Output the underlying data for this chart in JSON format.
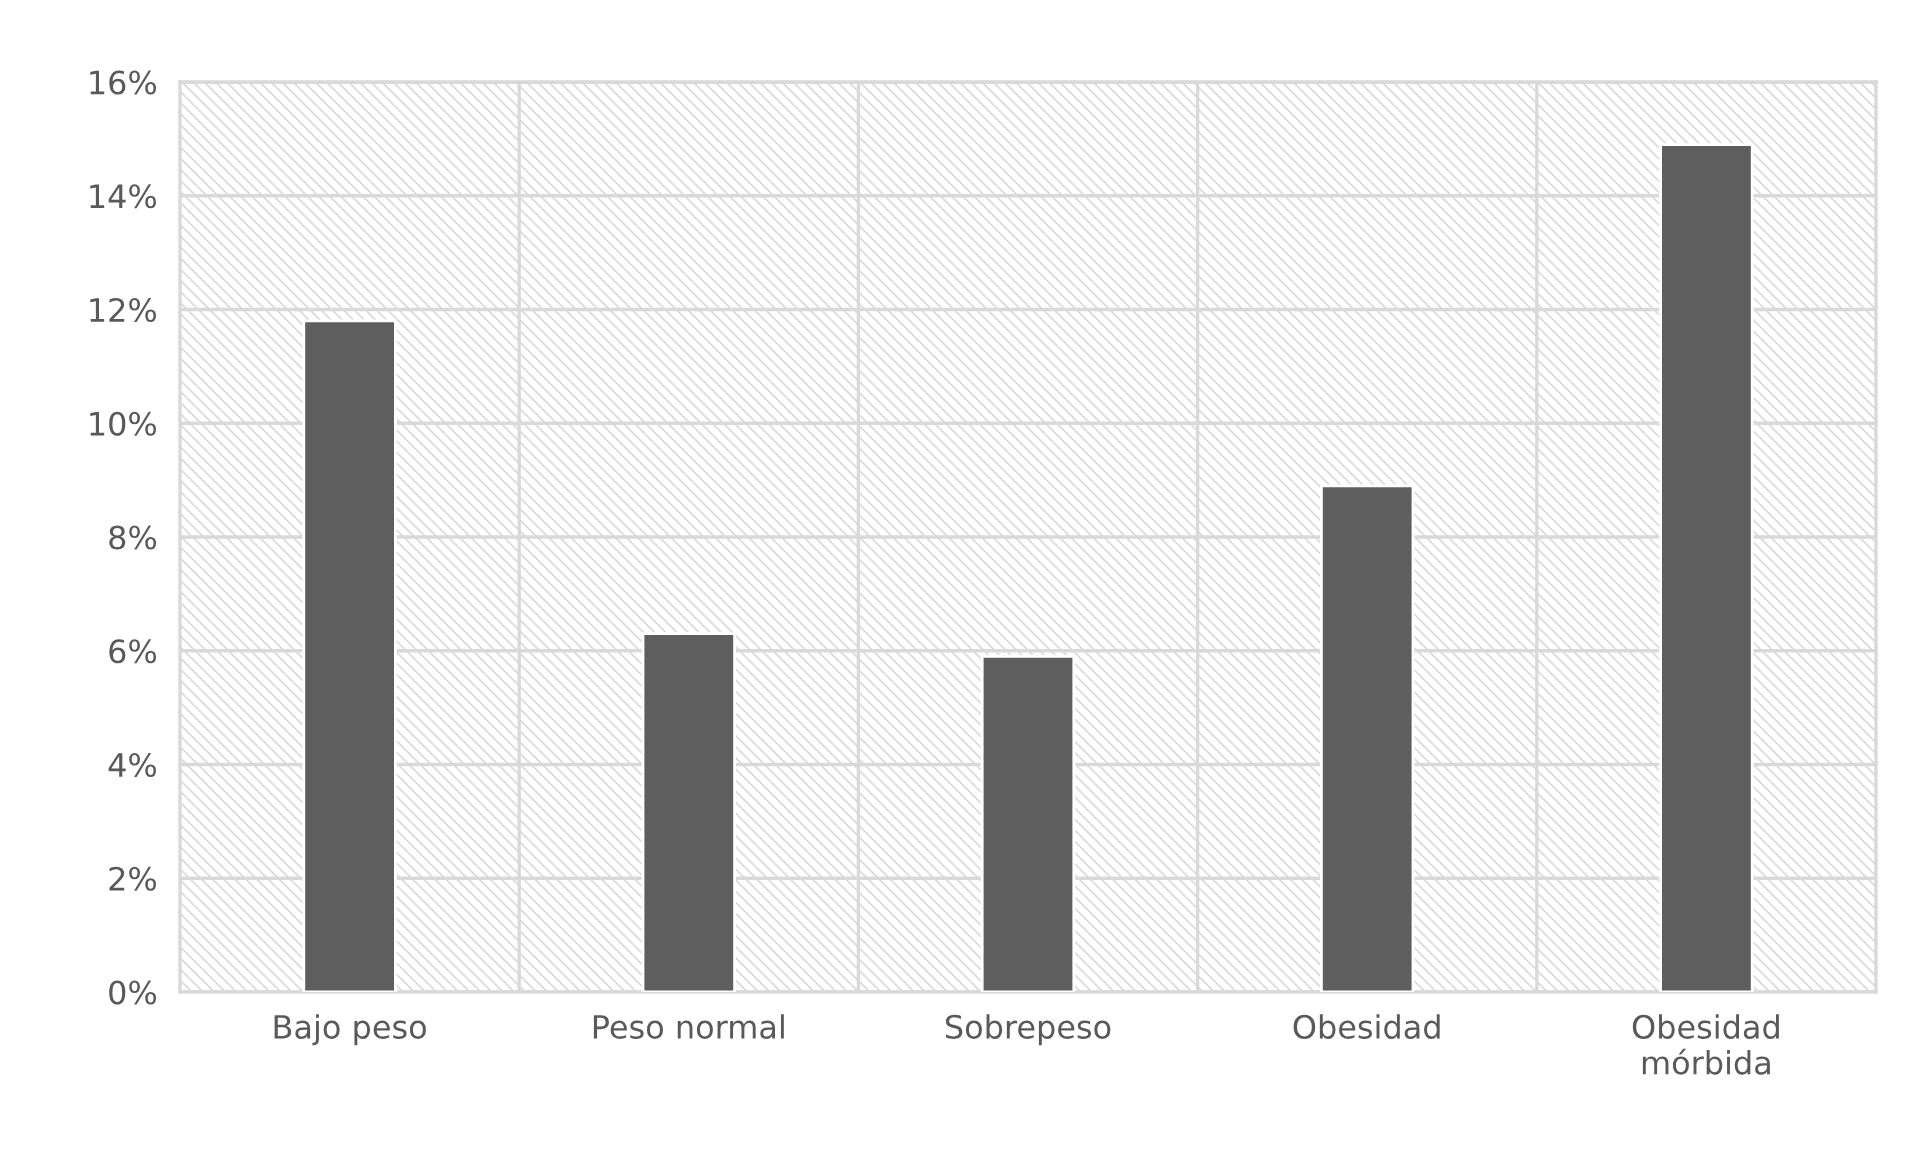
{
  "chart_data": {
    "type": "bar",
    "categories": [
      "Bajo peso",
      "Peso normal",
      "Sobrepeso",
      "Obesidad",
      "Obesidad\nmórbida"
    ],
    "values": [
      11.8,
      6.3,
      5.9,
      8.9,
      14.9
    ],
    "color": "#5e5e5e",
    "ylim": [
      0,
      16
    ],
    "yticks": [
      {
        "value": 0,
        "label": "0%"
      },
      {
        "value": 2,
        "label": "2%"
      },
      {
        "value": 4,
        "label": "4%"
      },
      {
        "value": 6,
        "label": "6%"
      },
      {
        "value": 8,
        "label": "8%"
      },
      {
        "value": 10,
        "label": "10%"
      },
      {
        "value": 12,
        "label": "12%"
      },
      {
        "value": 14,
        "label": "14%"
      },
      {
        "value": 16,
        "label": "16%"
      }
    ],
    "grid": true
  }
}
